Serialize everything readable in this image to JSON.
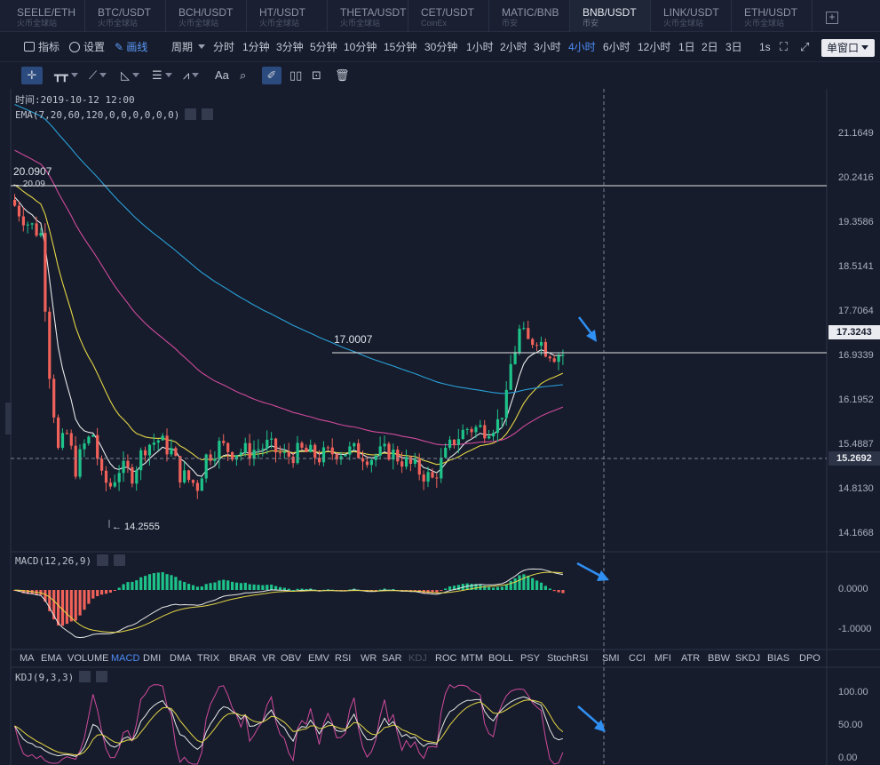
{
  "tabs": [
    {
      "pair": "SEELE/ETH",
      "source": "火币全球站"
    },
    {
      "pair": "BTC/USDT",
      "source": "火币全球站"
    },
    {
      "pair": "BCH/USDT",
      "source": "火币全球站"
    },
    {
      "pair": "HT/USDT",
      "source": "火币全球站"
    },
    {
      "pair": "THETA/USDT",
      "source": "火币全球站"
    },
    {
      "pair": "CET/USDT",
      "source": "CoinEx"
    },
    {
      "pair": "MATIC/BNB",
      "source": "币安"
    },
    {
      "pair": "BNB/USDT",
      "source": "币安"
    },
    {
      "pair": "LINK/USDT",
      "source": "火币全球站"
    },
    {
      "pair": "ETH/USDT",
      "source": "火币全球站"
    }
  ],
  "active_tab": "BNB/USDT",
  "add_tab_glyph": "+",
  "toolbar": {
    "indicators": "指标",
    "settings": "设置",
    "draw": "画线",
    "period": "周期",
    "timeframes": [
      "分时",
      "1分钟",
      "3分钟",
      "5分钟",
      "10分钟",
      "15分钟",
      "30分钟",
      "1小时",
      "2小时",
      "3小时",
      "4小时",
      "6小时",
      "12小时",
      "1日",
      "2日",
      "3日"
    ],
    "active_timeframe": "4小时",
    "sec": "1s",
    "window_mode": "单窗口"
  },
  "draw_tools": {
    "text": "Aa"
  },
  "main_chart": {
    "time_label": "时间:2019-10-12 12:00",
    "ema_label": "EMA(7,20,60,120,0,0,0,0,0,0)",
    "price_axis": [
      "21.1649",
      "20.2416",
      "19.3586",
      "18.5141",
      "17.7064",
      "16.9339",
      "16.1952",
      "15.4887",
      "14.8130",
      "14.1668"
    ],
    "current_price": "17.3243",
    "crosshair_price": "15.2692",
    "hline_top": "20.0907",
    "hline_top_tag": "← 20.09",
    "hline_mid": "17.0007",
    "low_note": "← 14.2555",
    "colors": {
      "up": "#1ec38a",
      "down": "#f0615a",
      "ema7": "#e8e8e8",
      "ema20": "#e5d545",
      "ema60": "#d04a9c",
      "ema120": "#2aa0d8",
      "arrow": "#2f8ff3"
    }
  },
  "macd": {
    "label": "MACD(12,26,9)",
    "axis": [
      "0.0000",
      "-1.0000"
    ]
  },
  "indicators": [
    "MA",
    "EMA",
    "VOLUME",
    "MACD",
    "DMI",
    "DMA",
    "TRIX",
    "BRAR",
    "VR",
    "OBV",
    "EMV",
    "RSI",
    "WR",
    "SAR",
    "KDJ",
    "ROC",
    "MTM",
    "BOLL",
    "PSY",
    "StochRSI",
    "SMI",
    "CCI",
    "MFI",
    "ATR",
    "BBW",
    "SKDJ",
    "BIAS",
    "DPO"
  ],
  "active_indicator": "MACD",
  "dim_indicator": "KDJ",
  "kdj": {
    "label": "KDJ(9,3,3)",
    "axis": [
      "100.00",
      "50.00",
      "0.00"
    ]
  }
}
